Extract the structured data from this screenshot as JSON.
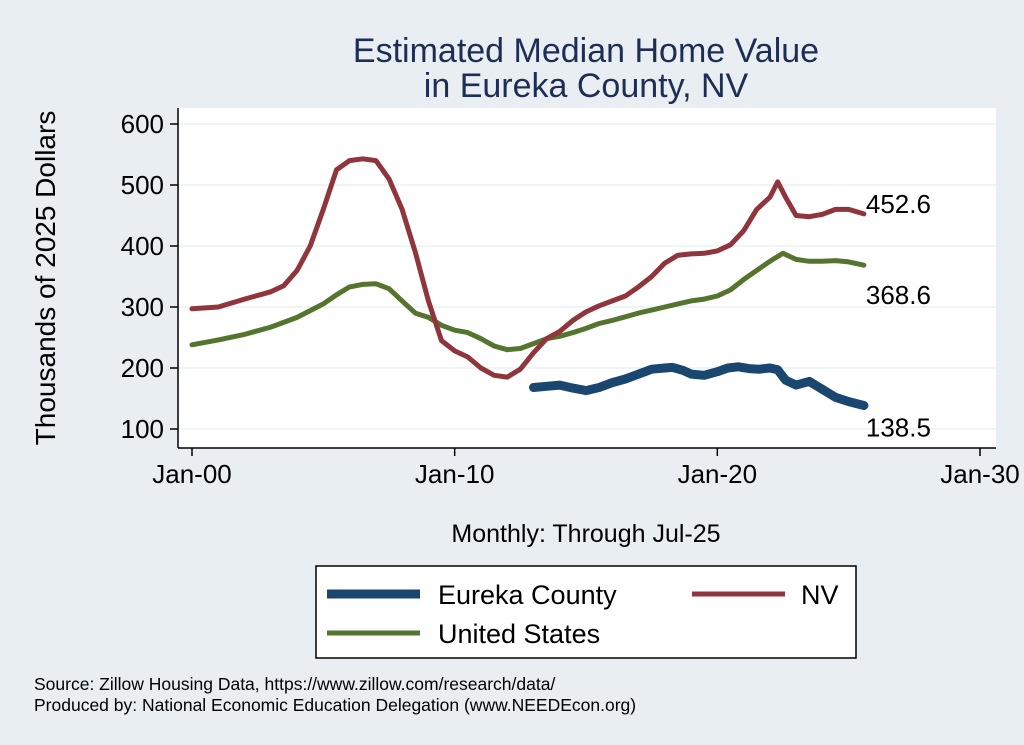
{
  "chart_data": {
    "type": "line",
    "title": [
      "Estimated Median Home Value",
      "in Eureka County, NV"
    ],
    "xlabel": "Monthly: Through Jul-25",
    "ylabel": "Thousands of 2025 Dollars",
    "xlim": [
      2000,
      2030
    ],
    "ylim": [
      100,
      600
    ],
    "x_ticks": [
      {
        "value": 2000,
        "label": "Jan-00"
      },
      {
        "value": 2010,
        "label": "Jan-10"
      },
      {
        "value": 2020,
        "label": "Jan-20"
      },
      {
        "value": 2030,
        "label": "Jan-30"
      }
    ],
    "y_ticks": [
      100,
      200,
      300,
      400,
      500,
      600
    ],
    "grid": true,
    "legend_position": "bottom",
    "series": [
      {
        "name": "Eureka County",
        "color": "#1a476f",
        "end_label": "138.5",
        "points": [
          [
            2013.0,
            168
          ],
          [
            2013.5,
            170
          ],
          [
            2014.0,
            172
          ],
          [
            2014.5,
            167
          ],
          [
            2015.0,
            163
          ],
          [
            2015.5,
            168
          ],
          [
            2016.0,
            176
          ],
          [
            2016.5,
            182
          ],
          [
            2017.0,
            190
          ],
          [
            2017.5,
            198
          ],
          [
            2018.0,
            200
          ],
          [
            2018.3,
            201
          ],
          [
            2018.7,
            196
          ],
          [
            2019.0,
            190
          ],
          [
            2019.5,
            188
          ],
          [
            2020.0,
            194
          ],
          [
            2020.4,
            200
          ],
          [
            2020.8,
            202
          ],
          [
            2021.2,
            199
          ],
          [
            2021.6,
            198
          ],
          [
            2022.0,
            200
          ],
          [
            2022.3,
            197
          ],
          [
            2022.6,
            180
          ],
          [
            2023.0,
            172
          ],
          [
            2023.5,
            178
          ],
          [
            2024.0,
            165
          ],
          [
            2024.5,
            152
          ],
          [
            2025.0,
            145
          ],
          [
            2025.58,
            138.5
          ]
        ]
      },
      {
        "name": "NV",
        "color": "#90353b",
        "end_label": "452.6",
        "points": [
          [
            2000.0,
            297
          ],
          [
            2001.0,
            300
          ],
          [
            2002.0,
            313
          ],
          [
            2003.0,
            325
          ],
          [
            2003.5,
            335
          ],
          [
            2004.0,
            360
          ],
          [
            2004.5,
            400
          ],
          [
            2005.0,
            460
          ],
          [
            2005.5,
            525
          ],
          [
            2006.0,
            540
          ],
          [
            2006.5,
            543
          ],
          [
            2007.0,
            540
          ],
          [
            2007.5,
            510
          ],
          [
            2008.0,
            460
          ],
          [
            2008.5,
            390
          ],
          [
            2009.0,
            310
          ],
          [
            2009.5,
            245
          ],
          [
            2010.0,
            228
          ],
          [
            2010.5,
            218
          ],
          [
            2011.0,
            200
          ],
          [
            2011.5,
            188
          ],
          [
            2012.0,
            185
          ],
          [
            2012.5,
            198
          ],
          [
            2013.0,
            225
          ],
          [
            2013.5,
            248
          ],
          [
            2014.0,
            260
          ],
          [
            2014.5,
            278
          ],
          [
            2015.0,
            292
          ],
          [
            2015.5,
            302
          ],
          [
            2016.0,
            310
          ],
          [
            2016.5,
            318
          ],
          [
            2017.0,
            333
          ],
          [
            2017.5,
            350
          ],
          [
            2018.0,
            372
          ],
          [
            2018.5,
            385
          ],
          [
            2019.0,
            387
          ],
          [
            2019.5,
            388
          ],
          [
            2020.0,
            392
          ],
          [
            2020.5,
            402
          ],
          [
            2021.0,
            425
          ],
          [
            2021.5,
            460
          ],
          [
            2022.0,
            480
          ],
          [
            2022.3,
            505
          ],
          [
            2022.6,
            480
          ],
          [
            2023.0,
            450
          ],
          [
            2023.5,
            448
          ],
          [
            2024.0,
            452
          ],
          [
            2024.5,
            460
          ],
          [
            2025.0,
            460
          ],
          [
            2025.58,
            452.6
          ]
        ]
      },
      {
        "name": "United States",
        "color": "#55752f",
        "end_label": "368.6",
        "points": [
          [
            2000.0,
            238
          ],
          [
            2001.0,
            246
          ],
          [
            2002.0,
            255
          ],
          [
            2003.0,
            267
          ],
          [
            2004.0,
            283
          ],
          [
            2005.0,
            305
          ],
          [
            2005.5,
            320
          ],
          [
            2006.0,
            333
          ],
          [
            2006.5,
            337
          ],
          [
            2007.0,
            338
          ],
          [
            2007.5,
            330
          ],
          [
            2008.0,
            310
          ],
          [
            2008.5,
            290
          ],
          [
            2009.0,
            283
          ],
          [
            2009.5,
            270
          ],
          [
            2010.0,
            262
          ],
          [
            2010.5,
            258
          ],
          [
            2011.0,
            248
          ],
          [
            2011.5,
            236
          ],
          [
            2012.0,
            230
          ],
          [
            2012.5,
            232
          ],
          [
            2013.0,
            240
          ],
          [
            2013.5,
            248
          ],
          [
            2014.0,
            252
          ],
          [
            2014.5,
            258
          ],
          [
            2015.0,
            265
          ],
          [
            2015.5,
            273
          ],
          [
            2016.0,
            278
          ],
          [
            2016.5,
            284
          ],
          [
            2017.0,
            290
          ],
          [
            2017.5,
            295
          ],
          [
            2018.0,
            300
          ],
          [
            2018.5,
            305
          ],
          [
            2019.0,
            310
          ],
          [
            2019.5,
            313
          ],
          [
            2020.0,
            318
          ],
          [
            2020.5,
            328
          ],
          [
            2021.0,
            345
          ],
          [
            2021.5,
            360
          ],
          [
            2022.0,
            375
          ],
          [
            2022.5,
            388
          ],
          [
            2023.0,
            378
          ],
          [
            2023.5,
            375
          ],
          [
            2024.0,
            375
          ],
          [
            2024.5,
            376
          ],
          [
            2025.0,
            374
          ],
          [
            2025.58,
            368.6
          ]
        ]
      }
    ]
  },
  "footer": {
    "source": "Source: Zillow Housing Data, https://www.zillow.com/research/data/",
    "produced_by": "Produced by: National Economic Education Delegation (www.NEEDEcon.org)"
  }
}
